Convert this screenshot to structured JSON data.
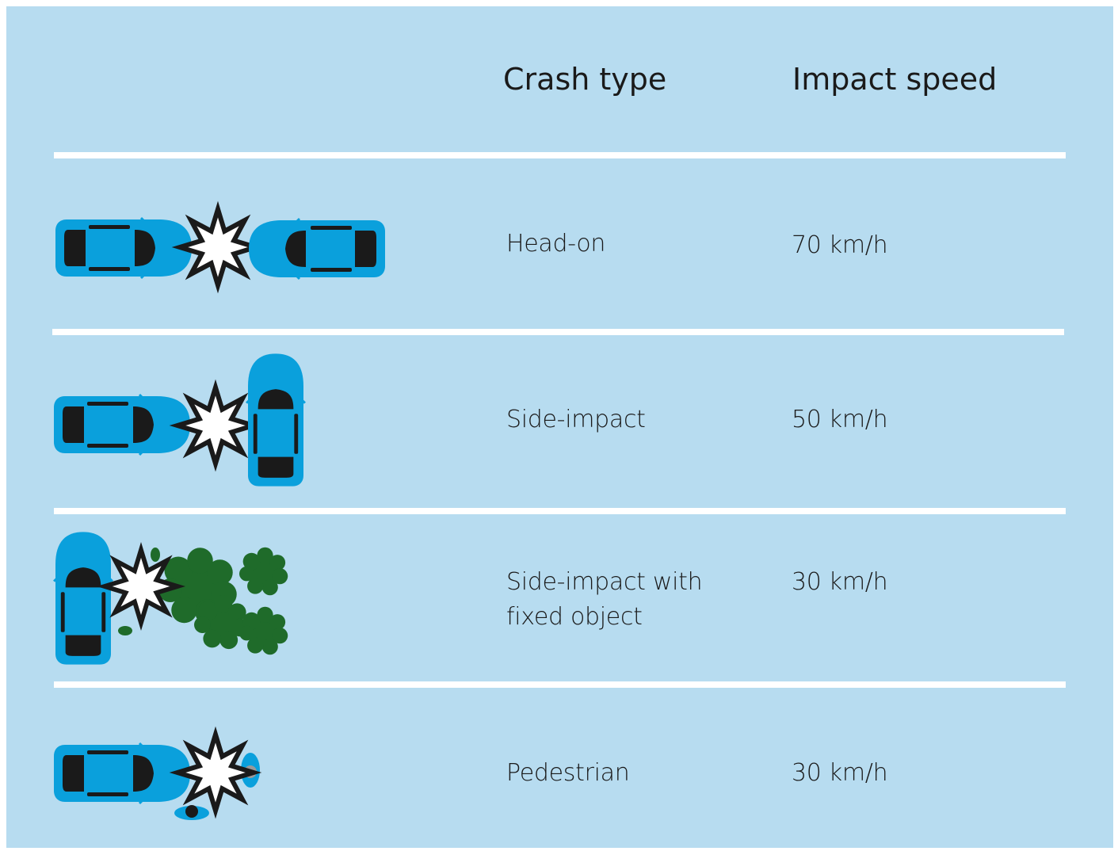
{
  "table": {
    "header": [
      "Crash type",
      "Impact speed"
    ],
    "rows": [
      [
        "Head-on",
        "70 km/h"
      ],
      [
        "Side-impact",
        "50 km/h"
      ],
      [
        "Side-impact with fixed object",
        "30 km/h"
      ],
      [
        "Pedestrian",
        "30 km/h"
      ]
    ]
  }
}
